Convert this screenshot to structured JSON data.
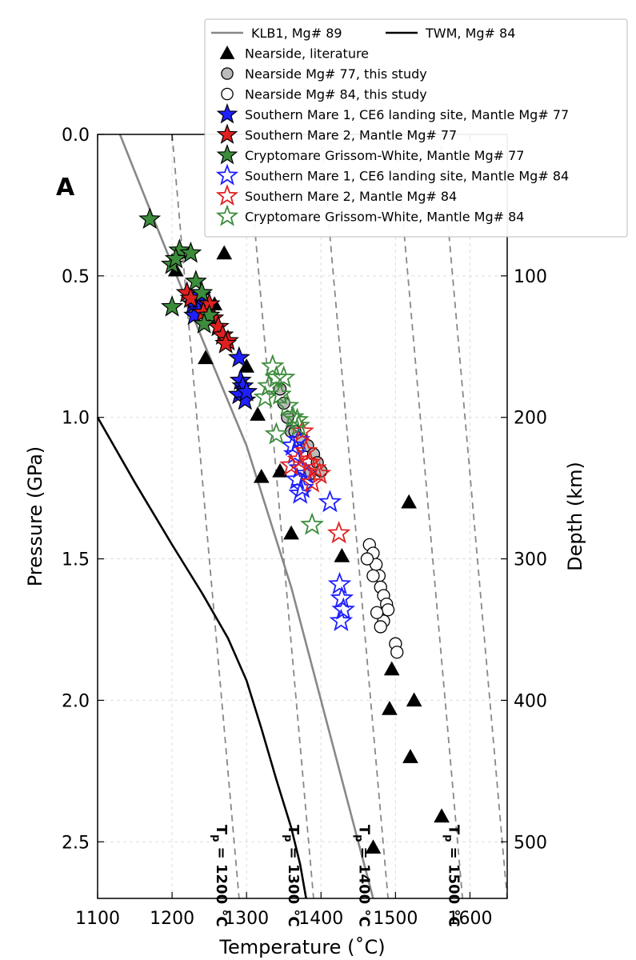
{
  "chart_data": {
    "type": "scatter",
    "panel_label": "A",
    "xlabel": "Temperature (˚C)",
    "ylabel": "Pressure (GPa)",
    "y2label": "Depth (km)",
    "xlim": [
      1100,
      1650
    ],
    "ylim": [
      2.7,
      0.0
    ],
    "y2lim": [
      540,
      0
    ],
    "xticks": [
      "1100",
      "1200",
      "1300",
      "1400",
      "1500",
      "1600"
    ],
    "yticks": [
      "0.0",
      "0.5",
      "1.0",
      "1.5",
      "2.0",
      "2.5"
    ],
    "y2ticks": [
      "100",
      "200",
      "300",
      "400",
      "500"
    ],
    "grid": true,
    "legend_position": "top-right",
    "lines": [
      {
        "name": "KLB1, Mg# 89",
        "color": "#888888",
        "x": [
          1130,
          1180,
          1240,
          1300,
          1360,
          1410,
          1470
        ],
        "y": [
          0.0,
          0.33,
          0.72,
          1.1,
          1.6,
          2.1,
          2.7
        ]
      },
      {
        "name": "TWM, Mg# 84",
        "color": "#000000",
        "x": [
          1100,
          1150,
          1200,
          1240,
          1275,
          1300,
          1320,
          1340,
          1360,
          1372,
          1380
        ],
        "y": [
          1.0,
          1.23,
          1.45,
          1.62,
          1.78,
          1.93,
          2.1,
          2.28,
          2.45,
          2.58,
          2.7
        ]
      }
    ],
    "adiabats": [
      {
        "label": "Tp = 1200 °C",
        "x": [
          1200,
          1290
        ],
        "y": [
          0.0,
          2.7
        ]
      },
      {
        "label": "Tp = 1300 °C",
        "x": [
          1300,
          1390
        ],
        "y": [
          0.0,
          2.7
        ]
      },
      {
        "label": "Tp = 1400 °C",
        "x": [
          1400,
          1490
        ],
        "y": [
          0.0,
          2.7
        ]
      },
      {
        "label": "Tp = 1500 °C",
        "x": [
          1500,
          1590
        ],
        "y": [
          0.0,
          2.7
        ]
      },
      {
        "label": "",
        "x": [
          1560,
          1650
        ],
        "y": [
          0.0,
          2.7
        ]
      }
    ],
    "adiabat_label_parts": [
      {
        "T": "T",
        "sub": "p",
        "rest": " = 1200 °C"
      },
      {
        "T": "T",
        "sub": "p",
        "rest": " = 1300 °C"
      },
      {
        "T": "T",
        "sub": "p",
        "rest": " = 1400 °C"
      },
      {
        "T": "T",
        "sub": "p",
        "rest": " = 1500 °C"
      }
    ],
    "adiabat_label_pos": [
      {
        "x": 1260,
        "y": 2.62
      },
      {
        "x": 1357,
        "y": 2.62
      },
      {
        "x": 1452,
        "y": 2.62
      },
      {
        "x": 1572,
        "y": 2.62
      }
    ],
    "series": [
      {
        "name": "Nearside, literature",
        "marker": "triangle",
        "fill": "#000000",
        "stroke": "#000000",
        "points": [
          [
            1205,
            0.48
          ],
          [
            1257,
            0.6
          ],
          [
            1270,
            0.42
          ],
          [
            1245,
            0.79
          ],
          [
            1300,
            0.82
          ],
          [
            1315,
            0.99
          ],
          [
            1320,
            1.21
          ],
          [
            1345,
            1.19
          ],
          [
            1360,
            1.41
          ],
          [
            1428,
            1.49
          ],
          [
            1518,
            1.3
          ],
          [
            1495,
            1.89
          ],
          [
            1525,
            2.0
          ],
          [
            1492,
            2.03
          ],
          [
            1520,
            2.2
          ],
          [
            1562,
            2.41
          ],
          [
            1470,
            2.52
          ]
        ]
      },
      {
        "name": "Nearside Mg# 77, this study",
        "marker": "circle",
        "fill": "#bbbbbb",
        "stroke": "#000000",
        "points": [
          [
            1345,
            0.9
          ],
          [
            1350,
            0.95
          ],
          [
            1355,
            1.0
          ],
          [
            1360,
            1.05
          ],
          [
            1365,
            1.05
          ],
          [
            1375,
            1.08
          ],
          [
            1382,
            1.1
          ],
          [
            1390,
            1.13
          ],
          [
            1395,
            1.16
          ],
          [
            1400,
            1.19
          ],
          [
            1385,
            1.2
          ]
        ]
      },
      {
        "name": "Nearside Mg# 84, this study",
        "marker": "circle",
        "fill": "#ffffff",
        "stroke": "#000000",
        "points": [
          [
            1465,
            1.45
          ],
          [
            1470,
            1.48
          ],
          [
            1474,
            1.52
          ],
          [
            1478,
            1.56
          ],
          [
            1480,
            1.6
          ],
          [
            1484,
            1.63
          ],
          [
            1488,
            1.66
          ],
          [
            1490,
            1.68
          ],
          [
            1484,
            1.72
          ],
          [
            1480,
            1.74
          ],
          [
            1475,
            1.69
          ],
          [
            1470,
            1.56
          ],
          [
            1462,
            1.5
          ],
          [
            1500,
            1.8
          ],
          [
            1502,
            1.83
          ]
        ]
      },
      {
        "name": "Southern Mare 1, CE6 landing site, Mantle Mg# 77",
        "marker": "star",
        "fill": "#1f1fff",
        "stroke": "#000000",
        "points": [
          [
            1228,
            0.6
          ],
          [
            1235,
            0.62
          ],
          [
            1238,
            0.57
          ],
          [
            1245,
            0.6
          ],
          [
            1230,
            0.64
          ],
          [
            1290,
            0.79
          ],
          [
            1292,
            0.87
          ],
          [
            1295,
            0.89
          ],
          [
            1290,
            0.92
          ],
          [
            1298,
            0.94
          ],
          [
            1300,
            0.91
          ]
        ]
      },
      {
        "name": "Southern Mare 2, Mantle Mg# 77",
        "marker": "star",
        "fill": "#e02020",
        "stroke": "#000000",
        "points": [
          [
            1220,
            0.56
          ],
          [
            1225,
            0.58
          ],
          [
            1250,
            0.6
          ],
          [
            1255,
            0.65
          ],
          [
            1262,
            0.68
          ],
          [
            1268,
            0.71
          ],
          [
            1275,
            0.73
          ],
          [
            1272,
            0.74
          ],
          [
            1242,
            0.63
          ]
        ]
      },
      {
        "name": "Cryptomare Grissom-White, Mantle Mg# 77",
        "marker": "star",
        "fill": "#3c8c3c",
        "stroke": "#000000",
        "points": [
          [
            1170,
            0.3
          ],
          [
            1200,
            0.46
          ],
          [
            1210,
            0.41
          ],
          [
            1205,
            0.44
          ],
          [
            1225,
            0.42
          ],
          [
            1232,
            0.52
          ],
          [
            1240,
            0.56
          ],
          [
            1250,
            0.64
          ],
          [
            1243,
            0.67
          ],
          [
            1200,
            0.61
          ]
        ]
      },
      {
        "name": "Southern Mare 1, CE6 landing site, Mantle Mg# 84",
        "marker": "star",
        "fill": "none",
        "stroke": "#1f1fff",
        "points": [
          [
            1362,
            1.1
          ],
          [
            1370,
            1.08
          ],
          [
            1365,
            1.13
          ],
          [
            1372,
            1.18
          ],
          [
            1368,
            1.22
          ],
          [
            1375,
            1.25
          ],
          [
            1380,
            1.2
          ],
          [
            1372,
            1.27
          ],
          [
            1412,
            1.3
          ],
          [
            1425,
            1.59
          ],
          [
            1428,
            1.64
          ],
          [
            1430,
            1.68
          ],
          [
            1427,
            1.72
          ]
        ]
      },
      {
        "name": "Southern Mare 2, Mantle Mg# 84",
        "marker": "star",
        "fill": "none",
        "stroke": "#e02020",
        "points": [
          [
            1375,
            1.05
          ],
          [
            1380,
            1.12
          ],
          [
            1370,
            1.15
          ],
          [
            1385,
            1.16
          ],
          [
            1392,
            1.18
          ],
          [
            1398,
            1.2
          ],
          [
            1388,
            1.23
          ],
          [
            1360,
            1.17
          ],
          [
            1424,
            1.41
          ]
        ]
      },
      {
        "name": "Cryptomare Grissom-White, Mantle Mg# 84",
        "marker": "star",
        "fill": "none",
        "stroke": "#3c8c3c",
        "points": [
          [
            1335,
            0.82
          ],
          [
            1340,
            0.86
          ],
          [
            1350,
            0.86
          ],
          [
            1330,
            0.89
          ],
          [
            1345,
            0.92
          ],
          [
            1325,
            0.93
          ],
          [
            1355,
            0.96
          ],
          [
            1362,
            1.0
          ],
          [
            1368,
            1.01
          ],
          [
            1370,
            1.03
          ],
          [
            1340,
            1.06
          ],
          [
            1388,
            1.38
          ]
        ]
      }
    ]
  }
}
